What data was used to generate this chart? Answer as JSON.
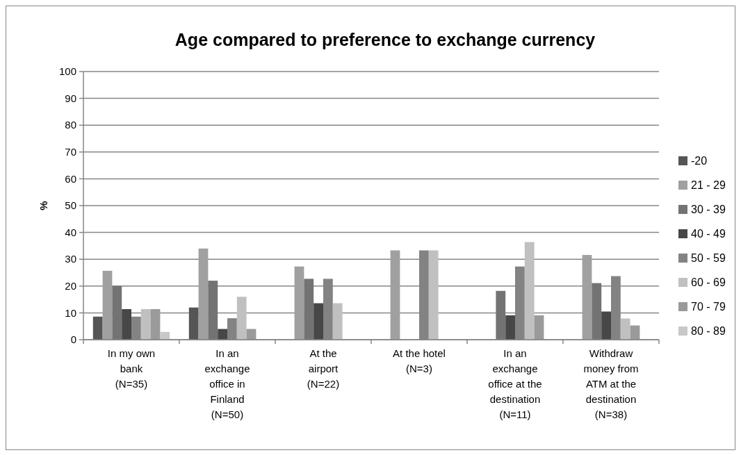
{
  "chart_data": {
    "type": "bar",
    "title": "Age compared to preference to exchange currency",
    "ylabel": "%",
    "categories": [
      "In my own bank (N=35)",
      "In an exchange office in Finland (N=50)",
      "At the airport (N=22)",
      "At the hotel (N=3)",
      "In an exchange office at the destination (N=11)",
      "Withdraw money from ATM at the destination (N=38)"
    ],
    "series": [
      {
        "name": "-20",
        "color": "#555555",
        "values": [
          8.6,
          12,
          0,
          0,
          0,
          0
        ]
      },
      {
        "name": "21 - 29",
        "color": "#a0a0a0",
        "values": [
          25.7,
          34,
          27.3,
          33.3,
          0,
          31.6
        ]
      },
      {
        "name": "30 - 39",
        "color": "#737373",
        "values": [
          20,
          22,
          22.7,
          0,
          18.2,
          21.1
        ]
      },
      {
        "name": "40 - 49",
        "color": "#474747",
        "values": [
          11.4,
          4,
          13.6,
          0,
          9.1,
          10.5
        ]
      },
      {
        "name": "50 - 59",
        "color": "#838383",
        "values": [
          8.6,
          8,
          22.7,
          33.3,
          27.3,
          23.7
        ]
      },
      {
        "name": "60 - 69",
        "color": "#c0c0c0",
        "values": [
          11.4,
          16,
          13.6,
          33.3,
          36.4,
          7.9
        ]
      },
      {
        "name": "70 - 79",
        "color": "#9a9a9a",
        "values": [
          11.4,
          4,
          0,
          0,
          9.1,
          5.3
        ]
      },
      {
        "name": "80 - 89",
        "color": "#c8c8c8",
        "values": [
          2.9,
          0,
          0,
          0,
          0,
          0
        ]
      }
    ],
    "ylim": [
      0,
      100
    ],
    "yticks": [
      0,
      10,
      20,
      30,
      40,
      50,
      60,
      70,
      80,
      90,
      100
    ],
    "grid": "y",
    "legend": "right"
  }
}
